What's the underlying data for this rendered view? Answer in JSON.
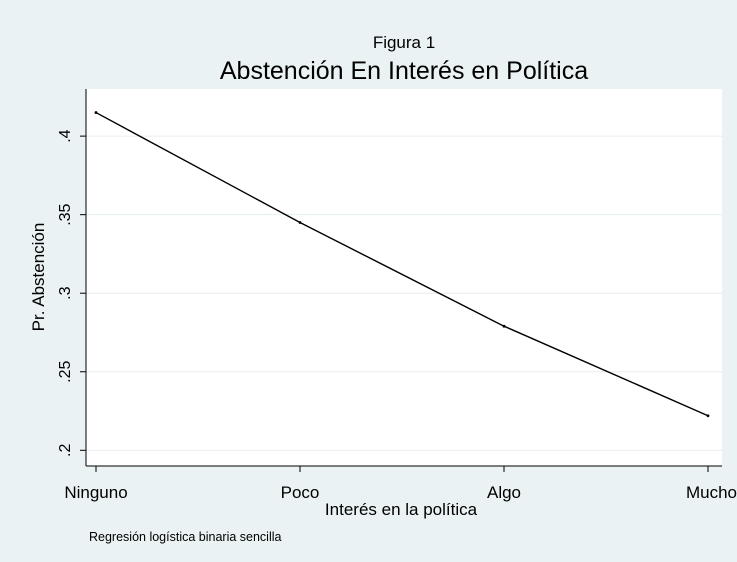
{
  "chart_data": {
    "type": "line",
    "supertitle": "Figura 1",
    "title": "Abstención En Interés en Política",
    "xlabel": "Interés en la política",
    "ylabel": "Pr. Abstención",
    "note": "Regresión logística binaria sencilla",
    "categories": [
      "Ninguno",
      "Poco",
      "Algo",
      "Mucho"
    ],
    "series": [
      {
        "values": [
          0.415,
          0.345,
          0.279,
          0.222
        ]
      }
    ],
    "ylim": [
      0.19,
      0.43
    ],
    "yticks": [
      0.2,
      0.25,
      0.3,
      0.35,
      0.4
    ],
    "ytick_labels": [
      ".2",
      ".25",
      ".3",
      ".35",
      ".4"
    ],
    "grid": true,
    "legend": "none",
    "colors": {
      "background": "#eaf2f3",
      "plot_area": "#ffffff",
      "line": "#000000",
      "grid": "#e6eef0"
    }
  }
}
